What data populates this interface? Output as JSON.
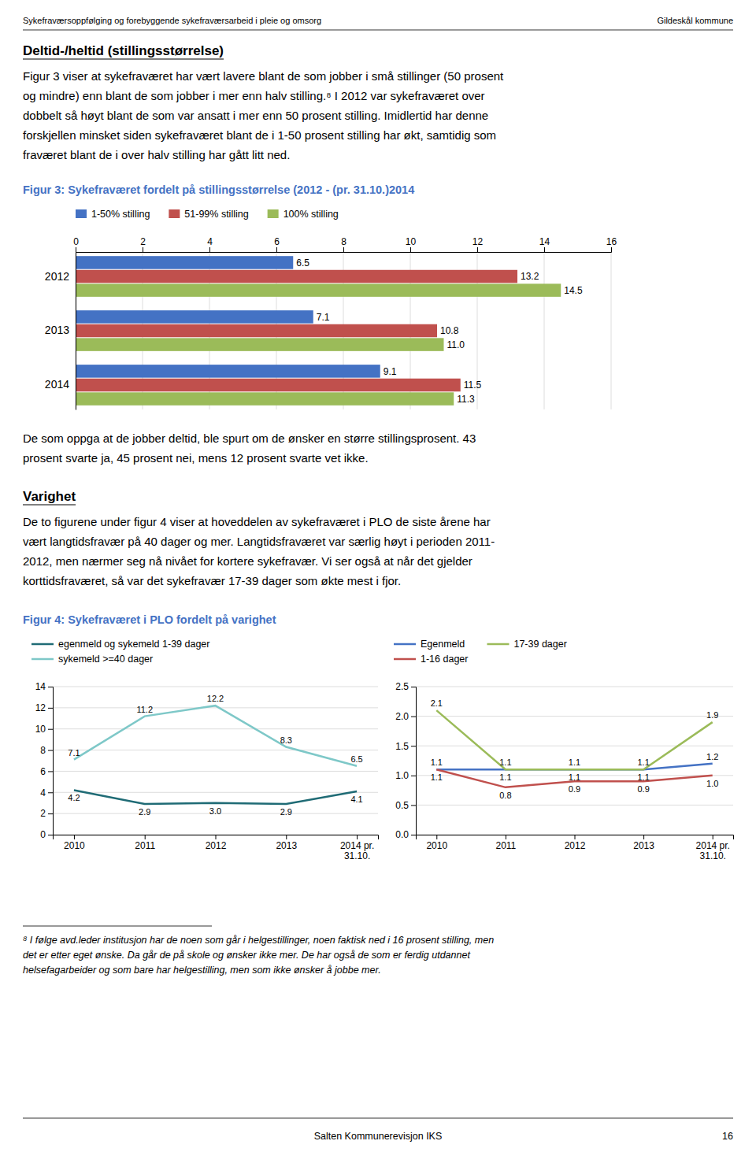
{
  "page": {
    "header_left": "Sykefraværsoppfølging og forebyggende sykefraværsarbeid i pleie og omsorg",
    "header_right": "Gildeskål kommune",
    "section1_title": "Deltid-/heltid (stillingsstørrelse)",
    "section1_text": [
      "Figur 3 viser at sykefraværet har vært lavere blant de som jobber i små stillinger (50 prosent",
      "og mindre) enn blant de som jobber i mer enn halv stilling.⁸ I 2012 var sykefraværet over",
      "dobbelt så høyt blant de som var ansatt i mer enn 50 prosent stilling. Imidlertid har denne",
      "forskjellen minsket siden sykefraværet blant de i 1-50 prosent stilling har økt, samtidig som",
      "fraværet blant de i over halv stilling har gått litt ned."
    ],
    "paragraph": [
      "De som oppga at de jobber deltid, ble spurt om de ønsker en større stillingsprosent. 43",
      "prosent svarte ja, 45 prosent nei, mens 12 prosent svarte vet ikke."
    ],
    "section2_title": "Varighet",
    "section2_text": [
      "De to figurene under figur 4 viser at hoveddelen av sykefraværet i PLO de siste årene har",
      "vært langtidsfravær på 40 dager og mer. Langtidsfraværet var særlig høyt i perioden 2011-",
      "2012, men nærmer seg nå nivået for kortere sykefravær. Vi ser også at når det gjelder",
      "korttidsfraværet, så var det sykefravær 17-39 dager som økte mest i fjor."
    ],
    "figure4_title": "Figur 4: Sykefraværet i PLO fordelt på varighet",
    "title_color": "#4472C4",
    "footnote": [
      "⁸ I følge avd.leder institusjon har de noen som går i helgestillinger, noen faktisk ned i 16 prosent stilling, men",
      "det er etter eget ønske. Da går de på skole og ønsker ikke mer. De har også de som er ferdig utdannet",
      "helsefagarbeider og som bare har helgestilling, men som ikke ønsker å jobbe mer."
    ],
    "footer_center": "Salten Kommunerevisjon IKS",
    "footer_right": "16"
  },
  "chart_data": [
    {
      "type": "bar",
      "orientation": "horizontal",
      "title": "Figur 3: Sykefraværet fordelt på stillingsstørrelse (2012 - (pr. 31.10.)2014",
      "categories": [
        "2012",
        "2013",
        "2014"
      ],
      "series": [
        {
          "name": "1-50% stilling",
          "color": "#4472C4",
          "values": [
            6.5,
            7.1,
            9.1
          ]
        },
        {
          "name": "51-99% stilling",
          "color": "#C0504D",
          "values": [
            13.2,
            10.8,
            11.5
          ]
        },
        {
          "name": "100% stilling",
          "color": "#9BBB59",
          "values": [
            14.5,
            11.0,
            11.3
          ],
          "value_labels": [
            "14.5",
            "11.0",
            "11.3"
          ]
        }
      ],
      "xlim": [
        0,
        16
      ],
      "xticks": [
        0,
        2,
        4,
        6,
        8,
        10,
        12,
        14,
        16
      ],
      "grid": true,
      "legend": "top",
      "data_labels": true
    },
    {
      "type": "line",
      "categories": [
        "2010",
        "2011",
        "2012",
        "2013",
        "2014 pr.\n31.10."
      ],
      "series": [
        {
          "name": "egenmeld og sykemeld 1-39 dager",
          "color": "#1F6B75",
          "values": [
            4.2,
            2.9,
            3.0,
            2.9,
            4.1
          ],
          "value_labels": [
            "4.2",
            "2.9",
            "3.0",
            "2.9",
            "4.1"
          ]
        },
        {
          "name": "sykemeld >=40 dager",
          "color": "#7EC8C8",
          "values": [
            7.1,
            11.2,
            12.2,
            8.3,
            6.5
          ]
        }
      ],
      "ylim": [
        0,
        14
      ],
      "yticks": [
        0,
        2,
        4,
        6,
        8,
        10,
        12,
        14
      ],
      "grid": true,
      "legend": "top",
      "data_labels": true
    },
    {
      "type": "line",
      "categories": [
        "2010",
        "2011",
        "2012",
        "2013",
        "2014 pr.\n31.10."
      ],
      "series": [
        {
          "name": "Egenmeld",
          "color": "#4472C4",
          "values": [
            1.1,
            1.1,
            1.1,
            1.1,
            1.2
          ]
        },
        {
          "name": "1-16 dager",
          "color": "#C0504D",
          "values": [
            1.1,
            0.8,
            0.9,
            0.9,
            1.0
          ],
          "value_labels": [
            "1.1",
            "0.8",
            "0.9",
            "0.9",
            "1.0"
          ]
        },
        {
          "name": "17-39 dager",
          "color": "#9BBB59",
          "values": [
            2.1,
            1.1,
            1.1,
            1.1,
            1.9
          ]
        }
      ],
      "ylim": [
        0,
        2.5
      ],
      "yticks": [
        {
          "value": 0,
          "label": "0.0"
        },
        0.5,
        {
          "value": 1,
          "label": "1.0"
        },
        1.5,
        {
          "value": 2,
          "label": "2.0"
        },
        2.5
      ],
      "grid": true,
      "legend": "top",
      "data_labels": true
    }
  ]
}
